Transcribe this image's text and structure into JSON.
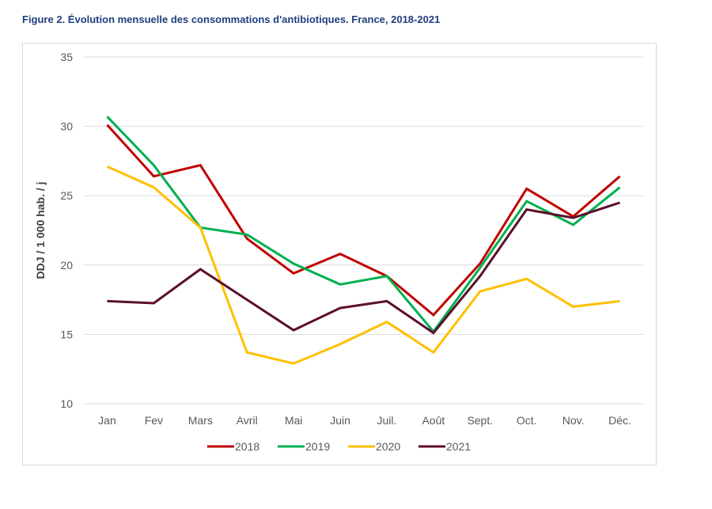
{
  "title": "Figure 2. Évolution mensuelle des consommations d'antibiotiques. France, 2018-2021",
  "chart_data": {
    "type": "line",
    "title": "Figure 2. Évolution mensuelle des consommations d'antibiotiques. France, 2018-2021",
    "xlabel": "",
    "ylabel": "DDJ / 1 000 hab. / j",
    "ylim": [
      10,
      35
    ],
    "yticks": [
      "10",
      "15",
      "20",
      "25",
      "30",
      "35"
    ],
    "grid": true,
    "legend_position": "bottom",
    "categories": [
      "Jan",
      "Fev",
      "Mars",
      "Avril",
      "Mai",
      "Juin",
      "Juil.",
      "Août",
      "Sept.",
      "Oct.",
      "Nov.",
      "Déc."
    ],
    "series": [
      {
        "name": "2018",
        "color": "#c00000",
        "values": [
          30.1,
          26.4,
          27.2,
          21.9,
          19.4,
          20.8,
          19.2,
          16.4,
          20.1,
          25.5,
          23.5,
          26.4
        ]
      },
      {
        "name": "2019",
        "color": "#00b050",
        "values": [
          30.7,
          27.2,
          22.7,
          22.2,
          20.1,
          18.6,
          19.2,
          15.2,
          19.8,
          24.6,
          22.9,
          25.6
        ]
      },
      {
        "name": "2020",
        "color": "#ffc000",
        "values": [
          27.1,
          25.6,
          22.7,
          13.7,
          12.9,
          14.3,
          15.9,
          13.7,
          18.1,
          19.0,
          17.0,
          17.4
        ]
      },
      {
        "name": "2021",
        "color": "#5b0f2a",
        "values": [
          17.4,
          17.25,
          19.7,
          17.5,
          15.3,
          16.9,
          17.4,
          15.1,
          19.2,
          24.0,
          23.4,
          24.5
        ]
      }
    ]
  }
}
